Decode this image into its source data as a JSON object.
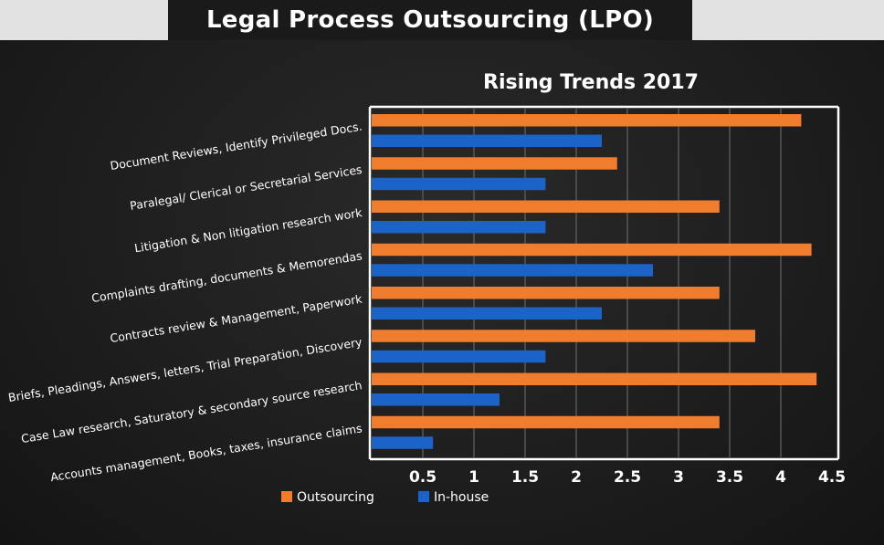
{
  "header": {
    "title": "Legal Process Outsourcing (LPO)"
  },
  "chart_data": {
    "type": "bar",
    "orientation": "horizontal",
    "title": "Rising Trends 2017",
    "xlabel": "",
    "ylabel": "",
    "categories": [
      "Document Reviews, Identify Privileged Docs.",
      "Paralegal/ Clerical or Secretarial Services",
      "Litigation & Non litigation research work",
      "Complaints drafting, documents & Memorendas",
      "Contracts review & Management, Paperwork",
      "Briefs, Pleadings, Answers, letters, Trial Preparation, Discovery",
      "Case Law research, Saturatory & secondary source research",
      "Accounts management, Books, taxes, insurance claims"
    ],
    "series": [
      {
        "name": "Outsourcing",
        "color": "#f07c2e",
        "values": [
          4.2,
          2.4,
          3.4,
          4.3,
          3.4,
          3.75,
          4.35,
          3.4
        ]
      },
      {
        "name": "In-house",
        "color": "#1b63c6",
        "values": [
          2.25,
          1.7,
          1.7,
          2.75,
          2.25,
          1.7,
          1.25,
          0.6
        ]
      }
    ],
    "xlim": [
      0,
      4.5
    ],
    "xticks": [
      "0.5",
      "1",
      "1.5",
      "2",
      "2.5",
      "3",
      "3.5",
      "4",
      "4.5"
    ],
    "grid": true,
    "legend": "bottom",
    "colors": {
      "background": "#1e1e1e",
      "grid": "#5a5a5a",
      "text": "#ffffff",
      "frame": "#ffffff"
    }
  }
}
